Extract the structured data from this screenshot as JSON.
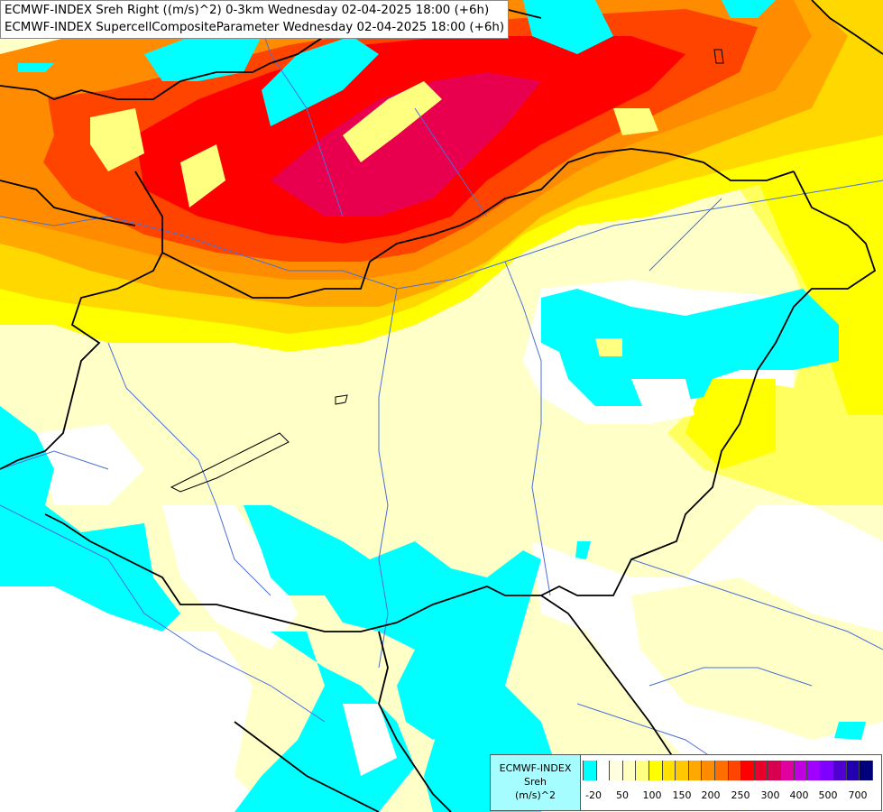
{
  "title": {
    "line1": "ECMWF-INDEX Sreh Right ((m/s)^2) 0-3km Wednesday 02-04-2025 18:00 (+6h)",
    "line2": "ECMWF-INDEX SupercellCompositeParameter Wednesday 02-04-2025 18:00 (+6h)"
  },
  "legend": {
    "source": "ECMWF-INDEX",
    "variable": "Sreh",
    "unit": "(m/s)^2",
    "colors": [
      "#00ffff",
      "#ffffff",
      "#ffffe0",
      "#ffffc0",
      "#ffff80",
      "#ffff00",
      "#ffe000",
      "#ffc800",
      "#ffa800",
      "#ff8c00",
      "#ff6e00",
      "#ff4400",
      "#ff0000",
      "#e8002a",
      "#d8004e",
      "#e000a0",
      "#c000e0",
      "#a000ff",
      "#8000ff",
      "#5000d0",
      "#2000b0",
      "#00007a"
    ],
    "ticks": [
      "-20",
      "50",
      "100",
      "150",
      "200",
      "250",
      "300",
      "400",
      "500",
      "700"
    ]
  },
  "colors": {
    "cyan": "#00ffff",
    "light_yellow": "#ffffc0",
    "yellow": "#ffff00",
    "orange": "#ff8c00",
    "red": "#ff0000",
    "crimson": "#e8004e"
  }
}
